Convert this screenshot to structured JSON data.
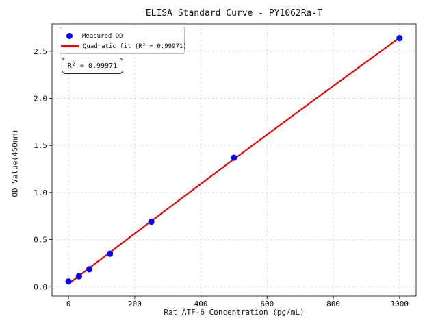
{
  "figure": {
    "background": "#ffffff"
  },
  "chart_data": {
    "type": "scatter",
    "title": "ELISA Standard Curve - PY1062Ra-T",
    "xlabel": "Rat ATF-6 Concentration (pg/mL)",
    "ylabel": "OD Value(450nm)",
    "xlim": [
      -50,
      1050
    ],
    "ylim": [
      -0.1,
      2.79
    ],
    "x_ticks": [
      0,
      200,
      400,
      600,
      800,
      1000
    ],
    "x_tick_labels": [
      "0",
      "200",
      "400",
      "600",
      "800",
      "1000"
    ],
    "y_ticks": [
      0.0,
      0.5,
      1.0,
      1.5,
      2.0,
      2.5
    ],
    "y_tick_labels": [
      "0.0",
      "0.5",
      "1.0",
      "1.5",
      "2.0",
      "2.5"
    ],
    "grid": true,
    "grid_style": "dashed",
    "grid_color": "#d8d8d8",
    "axis_color": "#333333",
    "series": [
      {
        "name": "Measured OD",
        "type": "scatter",
        "marker": "circle",
        "color": "#0000ff",
        "x": [
          0,
          31.25,
          62.5,
          125,
          250,
          500,
          1000
        ],
        "y": [
          0.055,
          0.11,
          0.185,
          0.35,
          0.69,
          1.37,
          2.64
        ]
      },
      {
        "name": "Quadratic fit (R² = 0.99971)",
        "type": "line",
        "fit": "quadratic",
        "color": "#ee0000",
        "x_range": [
          0,
          1000
        ]
      }
    ],
    "legend": {
      "position": "upper left",
      "items": [
        {
          "label": "Measured OD",
          "marker": "dot",
          "color": "#0000ff"
        },
        {
          "label": "Quadratic fit (R² = 0.99971)",
          "marker": "line",
          "color": "#ee0000"
        }
      ]
    },
    "annotation": {
      "text": "R² = 0.99971"
    },
    "r_squared": "0.99971"
  }
}
